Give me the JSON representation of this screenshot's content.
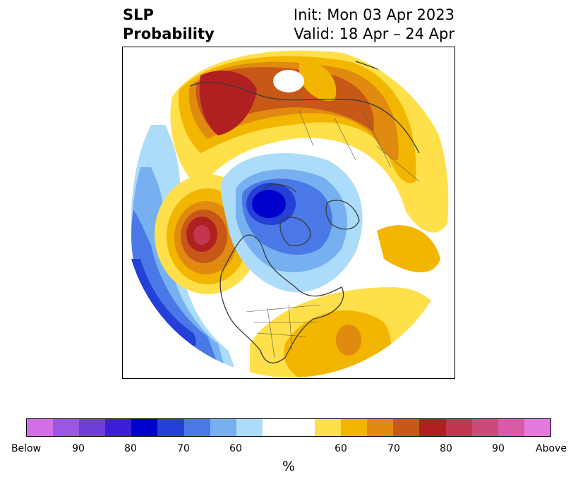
{
  "title": {
    "left_line1": "SLP",
    "left_line2": "Probability",
    "init": "Init: Mon 03 Apr 2023",
    "valid": "Valid: 18 Apr – 24 Apr"
  },
  "colorbar": {
    "unit": "%",
    "tick_labels": [
      "Below",
      "90",
      "80",
      "70",
      "60",
      "60",
      "70",
      "80",
      "90",
      "Above"
    ],
    "colors": [
      "#d36fe6",
      "#9b57e2",
      "#6e3ed8",
      "#3a1fd6",
      "#0000cc",
      "#2440d6",
      "#4a78e6",
      "#77b0f0",
      "#addcfa",
      "#ffffff",
      "#ffe04a",
      "#f2b600",
      "#e08a10",
      "#c85818",
      "#b02020",
      "#c23650",
      "#cc4a7a",
      "#d85aa8",
      "#e679dc"
    ]
  }
}
